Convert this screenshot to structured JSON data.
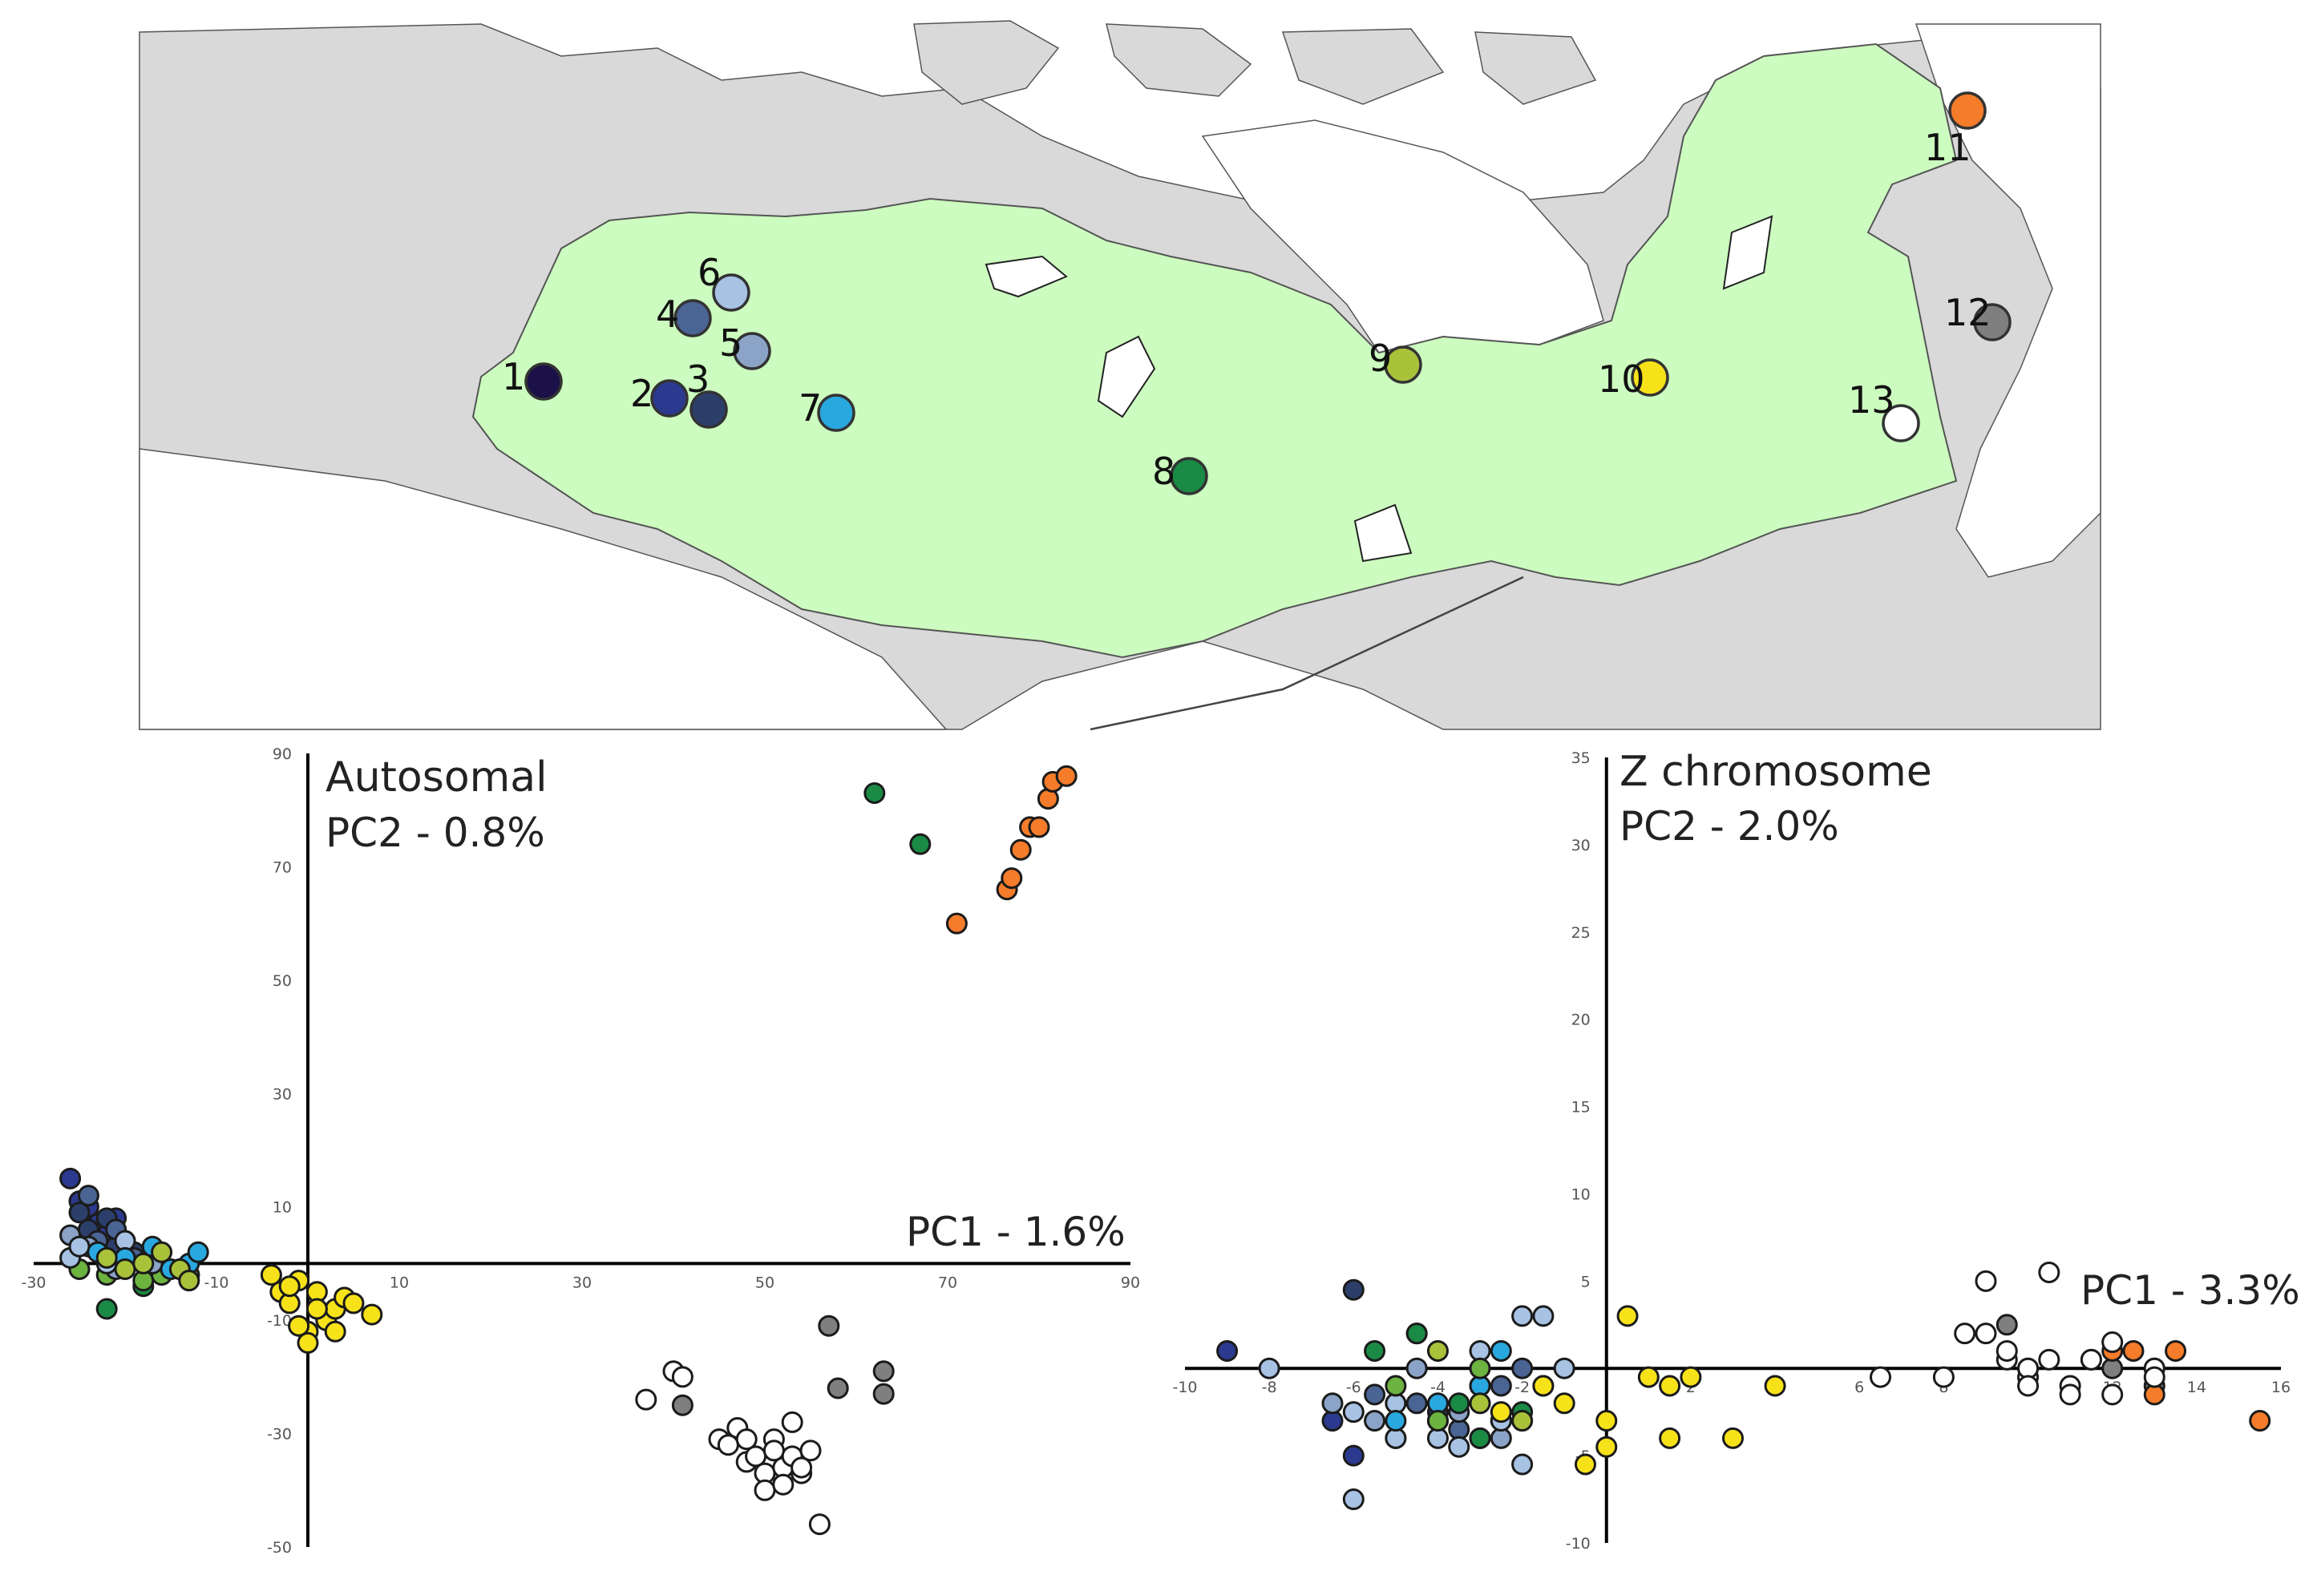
{
  "colors": {
    "p1": "#1b1148",
    "p2": "#2b3a8f",
    "p3": "#2c3f6b",
    "p4": "#4a6494",
    "p5": "#8aa3c6",
    "p6": "#a7c2e3",
    "p7": "#29a8e0",
    "p8": "#1a8a45",
    "p9": "#a9c23a",
    "p10": "#f7e21a",
    "p11": "#f47c2a",
    "p12": "#7f7f7f",
    "p13": "#ffffff",
    "green": "#6db33f",
    "range": "#ccfcbf",
    "land": "#d9d9d9",
    "sea": "#ffffff"
  },
  "map": {
    "sites": [
      {
        "id": "1",
        "label": "1",
        "color": "p1"
      },
      {
        "id": "2",
        "label": "2",
        "color": "p2"
      },
      {
        "id": "3",
        "label": "3",
        "color": "p3"
      },
      {
        "id": "4",
        "label": "4",
        "color": "p4"
      },
      {
        "id": "5",
        "label": "5",
        "color": "p5"
      },
      {
        "id": "6",
        "label": "6",
        "color": "p6"
      },
      {
        "id": "7",
        "label": "7",
        "color": "p7"
      },
      {
        "id": "8",
        "label": "8",
        "color": "p8"
      },
      {
        "id": "9",
        "label": "9",
        "color": "p9"
      },
      {
        "id": "10",
        "label": "10",
        "color": "p10"
      },
      {
        "id": "11",
        "label": "11",
        "color": "p11"
      },
      {
        "id": "12",
        "label": "12",
        "color": "p12"
      },
      {
        "id": "13",
        "label": "13",
        "color": "p13"
      }
    ]
  },
  "chart_data": [
    {
      "type": "scatter",
      "title": "Autosomal",
      "xlabel": "PC1 - 1.6%",
      "ylabel": "PC2 - 0.8%",
      "xlim": [
        -30,
        90
      ],
      "ylim": [
        -50,
        90
      ],
      "xticks": [
        -30,
        -10,
        10,
        30,
        50,
        70,
        90
      ],
      "yticks": [
        -50,
        -30,
        -10,
        10,
        30,
        50,
        70,
        90
      ],
      "series": [
        {
          "color": "p11",
          "x": [
            71,
            76.5,
            77,
            78,
            79,
            80,
            81,
            81.5,
            83
          ],
          "y": [
            60,
            66,
            68,
            73,
            77,
            77,
            82,
            85,
            86
          ]
        },
        {
          "color": "p8",
          "x": [
            -22,
            -18,
            -13,
            62,
            67
          ],
          "y": [
            -8,
            -4,
            -2,
            83,
            74
          ]
        },
        {
          "color": "green",
          "x": [
            -25,
            -22,
            -20,
            -18,
            -16,
            -14,
            -13
          ],
          "y": [
            -1,
            -2,
            0,
            -3,
            -2,
            -1,
            -2
          ]
        },
        {
          "color": "p2",
          "x": [
            -26,
            -25,
            -24,
            -23,
            -22,
            -21,
            -20
          ],
          "y": [
            15,
            11,
            10,
            7,
            5,
            8,
            4
          ]
        },
        {
          "color": "p3",
          "x": [
            -25,
            -24,
            -22,
            -21,
            -19
          ],
          "y": [
            9,
            6,
            8,
            3,
            2
          ]
        },
        {
          "color": "p4",
          "x": [
            -24,
            -23,
            -21,
            -19
          ],
          "y": [
            12,
            4,
            6,
            1
          ]
        },
        {
          "color": "p5",
          "x": [
            -26,
            -24,
            -21,
            -17
          ],
          "y": [
            5,
            3,
            -1,
            0
          ]
        },
        {
          "color": "p6",
          "x": [
            -26,
            -25,
            -22,
            -20
          ],
          "y": [
            1,
            3,
            0,
            4
          ]
        },
        {
          "color": "p7",
          "x": [
            -23,
            -20,
            -17,
            -15,
            -13,
            -12
          ],
          "y": [
            2,
            1,
            3,
            -1,
            0,
            2
          ]
        },
        {
          "color": "p9",
          "x": [
            -22,
            -20,
            -18,
            -16,
            -14,
            -13
          ],
          "y": [
            1,
            -1,
            0,
            2,
            -1,
            -3
          ]
        },
        {
          "color": "p10",
          "x": [
            -4,
            -3,
            -2,
            -1,
            0,
            1,
            2,
            3,
            4,
            -1,
            1,
            0,
            3,
            5,
            7,
            -2
          ],
          "y": [
            -2,
            -5,
            -7,
            -3,
            -12,
            -5,
            -10,
            -8,
            -6,
            -11,
            -8,
            -14,
            -12,
            -7,
            -9,
            -4
          ]
        },
        {
          "color": "p12",
          "x": [
            41,
            57,
            58,
            63,
            63
          ],
          "y": [
            -25,
            -11,
            -22,
            -19,
            -23
          ]
        },
        {
          "color": "p13",
          "x": [
            37,
            40,
            41,
            45,
            46,
            47,
            48,
            48,
            49,
            50,
            50,
            51,
            51,
            52,
            52,
            53,
            53,
            54,
            54,
            55,
            56
          ],
          "y": [
            -24,
            -19,
            -20,
            -31,
            -32,
            -29,
            -31,
            -35,
            -34,
            -37,
            -40,
            -31,
            -33,
            -36,
            -39,
            -34,
            -28,
            -37,
            -36,
            -33,
            -46
          ]
        }
      ]
    },
    {
      "type": "scatter",
      "title": "Z chromosome",
      "xlabel": "PC1 - 3.3%",
      "ylabel": "PC2 - 2.0%",
      "xlim": [
        -10,
        16
      ],
      "ylim": [
        -10,
        35
      ],
      "xticks": [
        -10,
        -8,
        -6,
        -4,
        -2,
        0,
        2,
        4,
        6,
        8,
        10,
        12,
        14,
        16
      ],
      "yticks": [
        -10,
        -5,
        0,
        5,
        10,
        15,
        20,
        25,
        30,
        35
      ],
      "series": [
        {
          "color": "p2",
          "x": [
            -9,
            -6.5,
            -6,
            -5,
            -4,
            -3
          ],
          "y": [
            1,
            -3,
            -5,
            -4,
            -3,
            -1
          ]
        },
        {
          "color": "p3",
          "x": [
            -6,
            -5,
            -4,
            -3,
            -2.5
          ],
          "y": [
            4.5,
            -2,
            -2.5,
            -4,
            -3
          ]
        },
        {
          "color": "p4",
          "x": [
            -5.5,
            -4.5,
            -3.5,
            -2.5,
            -2
          ],
          "y": [
            -1.5,
            -2,
            -3.5,
            -1,
            0
          ]
        },
        {
          "color": "p5",
          "x": [
            -6.5,
            -5.5,
            -4.5,
            -3.5,
            -3,
            -2.5
          ],
          "y": [
            -2,
            -3,
            0,
            -2.5,
            -1,
            -4
          ]
        },
        {
          "color": "p6",
          "x": [
            -8,
            -6,
            -5,
            -4.5,
            -4,
            -3.5,
            -3,
            -2.5,
            -2,
            -1,
            -1.5,
            -2,
            -4,
            -5,
            -6
          ],
          "y": [
            0,
            -7.5,
            -4,
            2,
            -3,
            -4.5,
            1,
            -3,
            -5.5,
            0,
            3,
            3,
            -4,
            -2,
            -2.5
          ]
        },
        {
          "color": "p7",
          "x": [
            -5,
            -4,
            -3,
            -2.5,
            -2
          ],
          "y": [
            -3,
            -2,
            -1,
            1,
            -3
          ]
        },
        {
          "color": "p8",
          "x": [
            -5.5,
            -4.5,
            -3.5,
            -3,
            -2
          ],
          "y": [
            1,
            2,
            -2,
            -4,
            -2.5
          ]
        },
        {
          "color": "green",
          "x": [
            -5,
            -4,
            -3
          ],
          "y": [
            -1,
            -3,
            0
          ]
        },
        {
          "color": "p9",
          "x": [
            -4,
            -3,
            -2,
            -1.5
          ],
          "y": [
            1,
            -2,
            -3,
            -1
          ]
        },
        {
          "color": "p10",
          "x": [
            -2.5,
            -1.5,
            -1,
            -0.5,
            0,
            0,
            0.5,
            1,
            1.5,
            1.5,
            2,
            3,
            4
          ],
          "y": [
            -2.5,
            -1,
            -2,
            -5.5,
            -4.5,
            -3,
            3,
            -0.5,
            -1,
            -4,
            -0.5,
            -4,
            -1
          ]
        },
        {
          "color": "p12",
          "x": [
            9.5,
            12,
            13
          ],
          "y": [
            2.5,
            0,
            -1
          ]
        },
        {
          "color": "p11",
          "x": [
            11.5,
            12.5,
            13,
            13.5,
            15.5,
            12,
            13
          ],
          "y": [
            0.5,
            1,
            -1.5,
            1,
            -3,
            1,
            0
          ]
        },
        {
          "color": "p13",
          "x": [
            6.5,
            8,
            8.5,
            9,
            9,
            9.5,
            10,
            10,
            10.5,
            10.5,
            11,
            11,
            11.5,
            12,
            12,
            13,
            13,
            10,
            9.5,
            10
          ],
          "y": [
            -0.5,
            -0.5,
            2,
            2,
            5,
            0.5,
            0,
            -0.5,
            0.5,
            5.5,
            -1,
            -1.5,
            0.5,
            -1.5,
            1.5,
            0,
            -0.5,
            0,
            1,
            -1
          ]
        }
      ]
    }
  ]
}
